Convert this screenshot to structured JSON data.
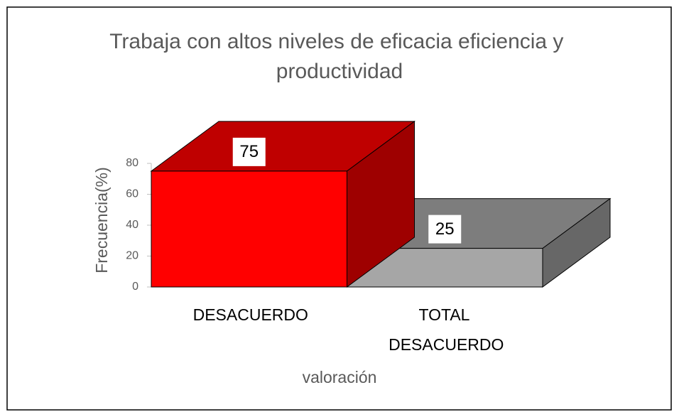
{
  "chart_data": {
    "type": "bar3d",
    "title": "Trabaja con altos niveles de eficacia eficiencia y productividad",
    "x_label": "valoración",
    "y_label": "Frecuencia(%)",
    "categories": [
      "DESACUERDO",
      "TOTAL DESACUERDO"
    ],
    "values": [
      75,
      25
    ],
    "colors": [
      "#ff0000",
      "#a6a6a6"
    ],
    "ylim": [
      0,
      80
    ],
    "yticks": [
      0,
      20,
      40,
      60,
      80
    ]
  }
}
